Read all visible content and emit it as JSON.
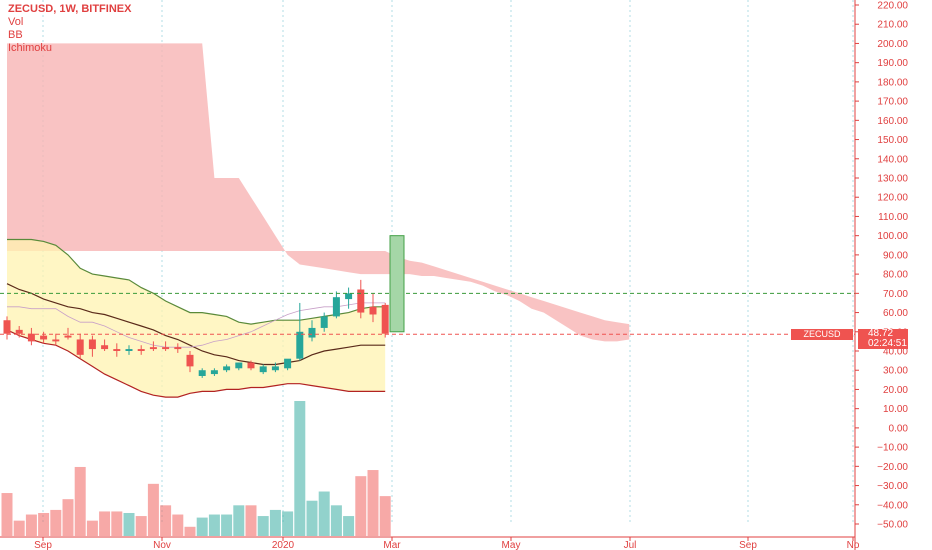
{
  "legend": {
    "title": "ZECUSD, 1W, BITFINEX",
    "indicators": [
      "Vol",
      "BB",
      "Ichimoku"
    ]
  },
  "price_tag": {
    "symbol": "ZECUSD",
    "last_price": "48.72",
    "countdown": "02:24:51"
  },
  "colors": {
    "up": "#26a69a",
    "down": "#ef5350",
    "axis": "#e04040",
    "cloud": "#f8b4b4",
    "bb_fill": "#fff3b0",
    "level_green": "#3a9a3a",
    "level_red": "#ef5350",
    "box_fill": "#a5d6a7",
    "box_stroke": "#43a047"
  },
  "chart_data": {
    "type": "candlestick",
    "ylim": [
      -50,
      220
    ],
    "y_ticks": [
      "220.00",
      "210.00",
      "200.00",
      "190.00",
      "180.00",
      "170.00",
      "160.00",
      "150.00",
      "140.00",
      "130.00",
      "120.00",
      "110.00",
      "100.00",
      "90.00",
      "80.00",
      "70.00",
      "60.00",
      "50.00",
      "40.00",
      "30.00",
      "20.00",
      "10.00",
      "0.00",
      "−10.00",
      "−20.00",
      "−30.00",
      "−40.00",
      "−50.00"
    ],
    "x_ticks": [
      "Sep",
      "Nov",
      "2020",
      "Mar",
      "May",
      "Jul",
      "Sep",
      "No"
    ],
    "candles": [
      {
        "o": 56,
        "h": 58,
        "l": 46,
        "c": 49
      },
      {
        "o": 51,
        "h": 53,
        "l": 47,
        "c": 49
      },
      {
        "o": 49,
        "h": 52,
        "l": 43,
        "c": 45
      },
      {
        "o": 48,
        "h": 50,
        "l": 44,
        "c": 46
      },
      {
        "o": 46,
        "h": 49,
        "l": 43,
        "c": 45
      },
      {
        "o": 48,
        "h": 52,
        "l": 46,
        "c": 47
      },
      {
        "o": 46,
        "h": 49,
        "l": 36,
        "c": 38
      },
      {
        "o": 46,
        "h": 48,
        "l": 37,
        "c": 41
      },
      {
        "o": 43,
        "h": 46,
        "l": 40,
        "c": 41
      },
      {
        "o": 41,
        "h": 44,
        "l": 37,
        "c": 40
      },
      {
        "o": 40,
        "h": 43,
        "l": 38,
        "c": 41
      },
      {
        "o": 41,
        "h": 43,
        "l": 38,
        "c": 40
      },
      {
        "o": 42,
        "h": 45,
        "l": 40,
        "c": 41
      },
      {
        "o": 42,
        "h": 45,
        "l": 40,
        "c": 41
      },
      {
        "o": 42,
        "h": 44,
        "l": 39,
        "c": 41
      },
      {
        "o": 38,
        "h": 40,
        "l": 29,
        "c": 32
      },
      {
        "o": 27,
        "h": 31,
        "l": 26,
        "c": 30
      },
      {
        "o": 28,
        "h": 31,
        "l": 27,
        "c": 30
      },
      {
        "o": 30,
        "h": 33,
        "l": 29,
        "c": 32
      },
      {
        "o": 31,
        "h": 34,
        "l": 30,
        "c": 34
      },
      {
        "o": 34,
        "h": 35,
        "l": 30,
        "c": 31
      },
      {
        "o": 29,
        "h": 33,
        "l": 28,
        "c": 32
      },
      {
        "o": 30,
        "h": 34,
        "l": 29,
        "c": 32
      },
      {
        "o": 31,
        "h": 35,
        "l": 30,
        "c": 36
      },
      {
        "o": 36,
        "h": 65,
        "l": 35,
        "c": 50
      },
      {
        "o": 47,
        "h": 56,
        "l": 45,
        "c": 52
      },
      {
        "o": 52,
        "h": 60,
        "l": 50,
        "c": 58
      },
      {
        "o": 58,
        "h": 71,
        "l": 57,
        "c": 68
      },
      {
        "o": 67,
        "h": 73,
        "l": 62,
        "c": 70
      },
      {
        "o": 72,
        "h": 77,
        "l": 57,
        "c": 60
      },
      {
        "o": 63,
        "h": 70,
        "l": 55,
        "c": 59
      },
      {
        "o": 64,
        "h": 65,
        "l": 47,
        "c": 49
      }
    ],
    "volume": [
      28,
      10,
      14,
      15,
      17,
      24,
      45,
      10,
      16,
      16,
      15,
      13,
      34,
      20,
      14,
      6,
      12,
      14,
      14,
      20,
      20,
      13,
      17,
      16,
      88,
      23,
      29,
      20,
      13,
      39,
      43,
      26
    ],
    "vol_max": 88,
    "bb_middle": [
      75,
      72,
      70,
      67,
      65,
      63,
      62,
      60,
      59,
      57,
      55,
      53,
      51,
      48,
      46,
      43,
      40,
      38,
      37,
      35,
      34,
      33,
      33,
      34,
      35,
      38,
      40,
      41,
      42,
      43,
      43,
      43
    ],
    "bb_upper": [
      98,
      98,
      98,
      97,
      95,
      90,
      83,
      80,
      79,
      78,
      77,
      73,
      70,
      66,
      63,
      60,
      60,
      59,
      58,
      55,
      54,
      55,
      56,
      56,
      56,
      57,
      58,
      59,
      60,
      62,
      63,
      63
    ],
    "bb_lower": [
      51,
      48,
      46,
      44,
      43,
      40,
      36,
      32,
      28,
      25,
      22,
      19,
      17,
      16,
      16,
      18,
      19,
      19,
      20,
      20,
      21,
      21,
      22,
      23,
      23,
      22,
      21,
      20,
      19,
      19,
      19,
      19
    ],
    "base_line": [
      63,
      63,
      62,
      62,
      62,
      58,
      55,
      55,
      53,
      50,
      47,
      45,
      43,
      42,
      42,
      42,
      43,
      45,
      46,
      48,
      50,
      53,
      56,
      59,
      61,
      62,
      63,
      63,
      64,
      65,
      65,
      65
    ],
    "cloud_a": [
      92,
      92,
      92,
      92,
      92,
      92,
      92,
      92,
      92,
      92,
      92,
      92,
      92,
      92,
      92,
      92,
      92,
      92,
      92,
      92,
      92,
      92,
      92,
      92,
      92,
      92,
      92,
      92,
      92,
      92,
      92,
      92,
      89,
      87,
      86,
      84,
      82,
      80,
      78,
      76,
      74,
      72,
      70,
      68,
      66,
      64,
      62,
      60,
      58,
      56,
      55,
      54
    ],
    "cloud_b": [
      200,
      200,
      200,
      200,
      200,
      200,
      200,
      200,
      200,
      200,
      200,
      200,
      200,
      200,
      200,
      200,
      200,
      130,
      130,
      130,
      120,
      110,
      100,
      90,
      85,
      84,
      83,
      82,
      81,
      80,
      80,
      80,
      80,
      80,
      79,
      79,
      78,
      77,
      76,
      74,
      71,
      69,
      66,
      62,
      60,
      56,
      52,
      48,
      46,
      45,
      45,
      46
    ],
    "level_green": 70,
    "level_red": 48.72,
    "projection_box": [
      50,
      100
    ]
  }
}
